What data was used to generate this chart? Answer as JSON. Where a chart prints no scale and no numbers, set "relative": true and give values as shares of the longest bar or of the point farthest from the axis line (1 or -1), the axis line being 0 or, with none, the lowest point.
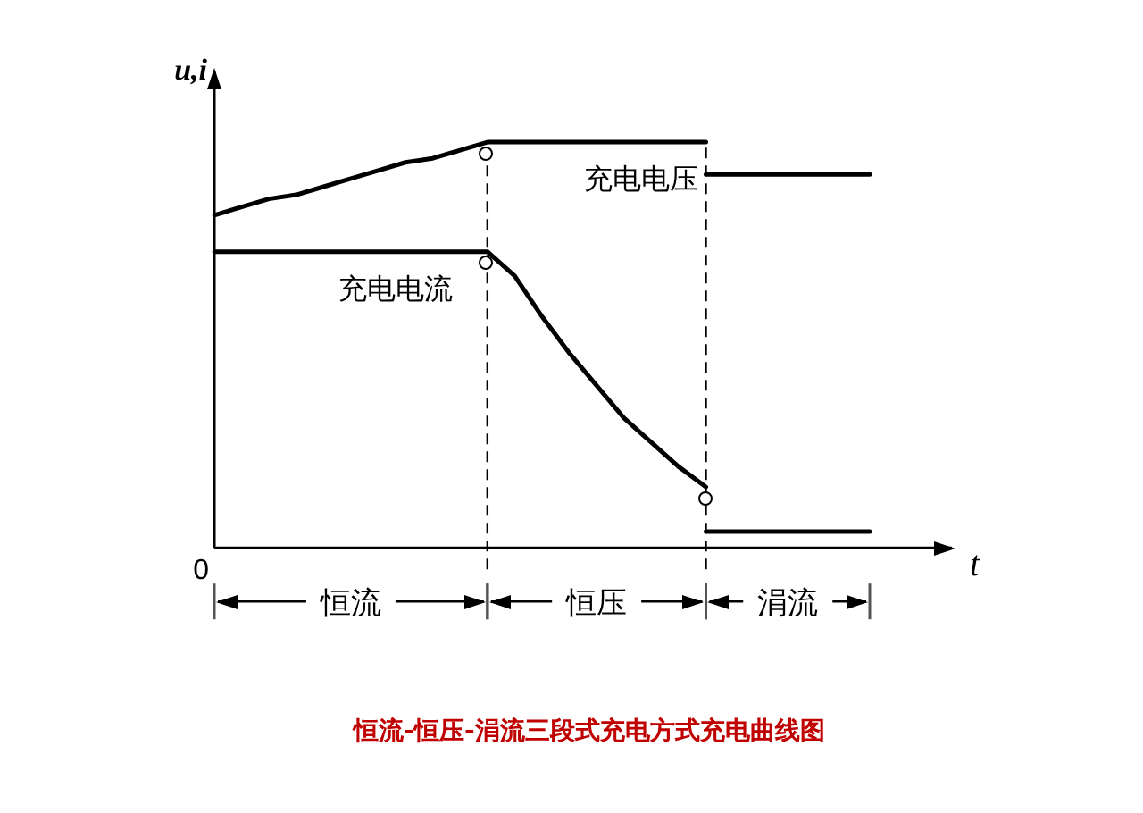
{
  "chart_data": {
    "type": "line",
    "title": "恒流-恒压-涓流三段式充电方式充电曲线图",
    "xlabel": "t",
    "ylabel": "u,i",
    "relative": true,
    "tick_labels": "x",
    "grid": false,
    "legend": false,
    "marker": "none",
    "line_style": "solid",
    "categories": [
      null,
      null,
      null,
      null,
      null,
      "恒流",
      null,
      null,
      null,
      null,
      null,
      null,
      null,
      null,
      "恒压",
      null,
      null,
      null,
      null,
      null,
      null,
      "涓流",
      null,
      null,
      null
    ],
    "series": [
      {
        "name": "充电电压",
        "color": "#000000",
        "values": [
          0.82,
          0.84,
          0.86,
          0.87,
          0.89,
          0.91,
          0.93,
          0.95,
          0.96,
          0.98,
          1,
          1,
          1,
          1,
          1,
          1,
          1,
          1,
          1,
          null,
          null,
          null,
          null,
          null,
          null
        ]
      },
      {
        "color": "#000000",
        "values": [
          null,
          null,
          null,
          null,
          null,
          null,
          null,
          null,
          null,
          null,
          null,
          null,
          null,
          null,
          null,
          null,
          null,
          null,
          0.92,
          0.92,
          0.92,
          0.92,
          0.92,
          0.92,
          0.92
        ]
      },
      {
        "name": "充电电流",
        "color": "#000000",
        "values": [
          0.73,
          0.73,
          0.73,
          0.73,
          0.73,
          0.73,
          0.73,
          0.73,
          0.73,
          0.73,
          0.73,
          0.67,
          0.57,
          0.48,
          0.4,
          0.32,
          0.26,
          0.2,
          0.15,
          null,
          null,
          null,
          null,
          null,
          null
        ]
      },
      {
        "color": "#000000",
        "values": [
          null,
          null,
          null,
          null,
          null,
          null,
          null,
          null,
          null,
          null,
          null,
          null,
          null,
          null,
          null,
          null,
          null,
          null,
          0.04,
          0.04,
          0.04,
          0.04,
          0.04,
          0.04,
          0.04
        ]
      }
    ],
    "annotations": [
      "0"
    ]
  }
}
